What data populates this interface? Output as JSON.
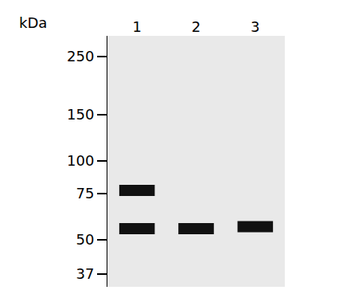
{
  "chart_data": {
    "type": "blot",
    "ylabel": "kDa",
    "categories": [
      "1",
      "2",
      "3"
    ],
    "values": [
      [
        77,
        55
      ],
      [
        55
      ],
      [
        56
      ]
    ],
    "color": "#111111",
    "log": "y",
    "ylim": [
      33,
      300
    ],
    "yticks": [
      250,
      150,
      100,
      75,
      50,
      37
    ],
    "grid": false
  }
}
